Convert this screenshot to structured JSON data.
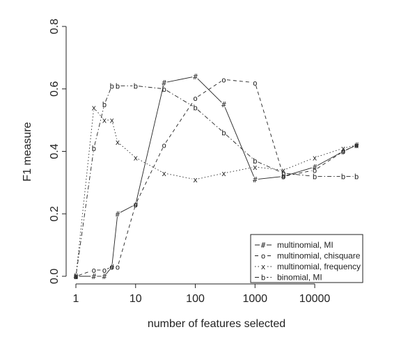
{
  "chart_data": {
    "type": "line",
    "title": "",
    "xlabel": "number of features selected",
    "ylabel": "F1 measure",
    "xscale": "log",
    "xlim": [
      1,
      50000
    ],
    "ylim": [
      0,
      0.8
    ],
    "x_ticks": [
      {
        "value": 1,
        "label": "1"
      },
      {
        "value": 10,
        "label": "10"
      },
      {
        "value": 100,
        "label": "100"
      },
      {
        "value": 1000,
        "label": "1000"
      },
      {
        "value": 10000,
        "label": "10000"
      }
    ],
    "y_ticks": [
      {
        "value": 0.0,
        "label": "0.0"
      },
      {
        "value": 0.2,
        "label": "0.2"
      },
      {
        "value": 0.4,
        "label": "0.4"
      },
      {
        "value": 0.6,
        "label": "0.6"
      },
      {
        "value": 0.8,
        "label": "0.8"
      }
    ],
    "grid": false,
    "legend_position": "bottom-right",
    "series": [
      {
        "name": "multinomial, MI",
        "marker": "#",
        "dash": "solid",
        "points": [
          [
            1,
            0.0
          ],
          [
            2,
            0.0
          ],
          [
            3,
            0.0
          ],
          [
            4,
            0.03
          ],
          [
            5,
            0.2
          ],
          [
            10,
            0.23
          ],
          [
            30,
            0.62
          ],
          [
            100,
            0.64
          ],
          [
            300,
            0.55
          ],
          [
            1000,
            0.31
          ],
          [
            3000,
            0.32
          ],
          [
            10000,
            0.35
          ],
          [
            30000,
            0.4
          ],
          [
            50000,
            0.42
          ]
        ]
      },
      {
        "name": "multinomial, chisquare",
        "marker": "o",
        "dash": "dashed",
        "points": [
          [
            1,
            0.0
          ],
          [
            2,
            0.02
          ],
          [
            3,
            0.02
          ],
          [
            4,
            0.03
          ],
          [
            5,
            0.03
          ],
          [
            10,
            0.23
          ],
          [
            30,
            0.42
          ],
          [
            100,
            0.57
          ],
          [
            300,
            0.63
          ],
          [
            1000,
            0.62
          ],
          [
            3000,
            0.32
          ],
          [
            10000,
            0.34
          ],
          [
            30000,
            0.4
          ],
          [
            50000,
            0.42
          ]
        ]
      },
      {
        "name": "multinomial, frequency",
        "marker": "x",
        "dash": "dotted",
        "points": [
          [
            1,
            0.0
          ],
          [
            2,
            0.54
          ],
          [
            3,
            0.5
          ],
          [
            4,
            0.5
          ],
          [
            5,
            0.43
          ],
          [
            10,
            0.38
          ],
          [
            30,
            0.33
          ],
          [
            100,
            0.31
          ],
          [
            300,
            0.33
          ],
          [
            1000,
            0.35
          ],
          [
            3000,
            0.34
          ],
          [
            10000,
            0.38
          ],
          [
            30000,
            0.41
          ],
          [
            50000,
            0.42
          ]
        ]
      },
      {
        "name": "binomial, MI",
        "marker": "b",
        "dash": "dashdot",
        "points": [
          [
            1,
            0.0
          ],
          [
            2,
            0.41
          ],
          [
            3,
            0.55
          ],
          [
            4,
            0.61
          ],
          [
            5,
            0.61
          ],
          [
            10,
            0.61
          ],
          [
            30,
            0.6
          ],
          [
            100,
            0.54
          ],
          [
            300,
            0.46
          ],
          [
            1000,
            0.37
          ],
          [
            3000,
            0.33
          ],
          [
            10000,
            0.32
          ],
          [
            30000,
            0.32
          ],
          [
            50000,
            0.32
          ]
        ]
      }
    ]
  }
}
